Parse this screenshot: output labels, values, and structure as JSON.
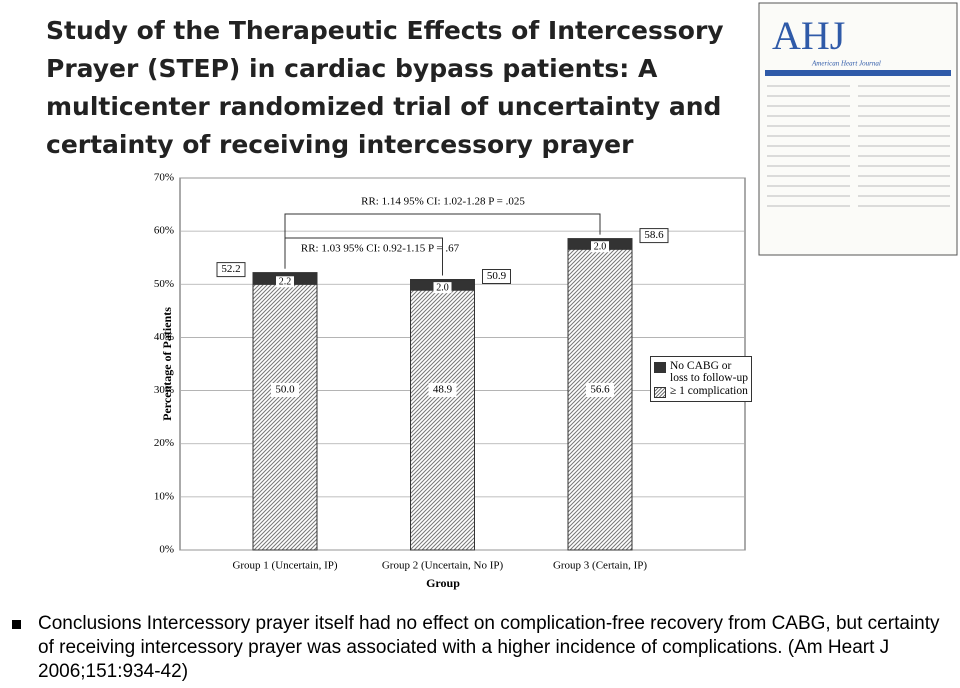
{
  "header": {
    "title": "Study of the Therapeutic Effects of Intercessory Prayer (STEP) in cardiac bypass patients: A multicenter randomized trial of uncertainty and certainty of receiving intercessory prayer"
  },
  "cover": {
    "logo": "AHJ",
    "journal": "American Heart Journal"
  },
  "chart_data": {
    "type": "stacked-bar",
    "categories": [
      "Group 1 (Uncertain, IP)",
      "Group 2 (Uncertain, No IP)",
      "Group 3 (Certain, IP)"
    ],
    "series": [
      {
        "name": "≥ 1 complication",
        "color": "#777777",
        "values": [
          50.0,
          48.9,
          56.6
        ],
        "value_labels": [
          "50.0",
          "48.9",
          "56.6"
        ]
      },
      {
        "name": "No CABG or loss to follow-up",
        "color": "#333333",
        "values": [
          2.2,
          2.0,
          2.0
        ],
        "value_labels": [
          "2.2",
          "2.0",
          "2.0"
        ]
      }
    ],
    "totals": [
      52.2,
      50.9,
      58.6
    ],
    "total_labels": [
      "52.2",
      "50.9",
      "58.6"
    ],
    "annotations": [
      "RR: 1.14  95% CI: 1.02-1.28  P = .025",
      "RR: 1.03  95% CI: 0.92-1.15  P = .67"
    ],
    "xlabel": "Group",
    "ylabel": "Percentage of Patients",
    "ylim": [
      0,
      70
    ],
    "yticks": [
      {
        "value": 0,
        "label": "0%"
      },
      {
        "value": 10,
        "label": "10%"
      },
      {
        "value": 20,
        "label": "20%"
      },
      {
        "value": 30,
        "label": "30%"
      },
      {
        "value": 40,
        "label": "40%"
      },
      {
        "value": 50,
        "label": "50%"
      },
      {
        "value": 60,
        "label": "60%"
      },
      {
        "value": 70,
        "label": "70%"
      }
    ],
    "grid": true,
    "legend": "right"
  },
  "caption": "Conclusions Intercessory prayer itself had no effect on complication-free recovery from CABG, but certainty of receiving intercessory prayer was associated with a higher incidence of complications. (Am Heart J 2006;151:934-42)"
}
